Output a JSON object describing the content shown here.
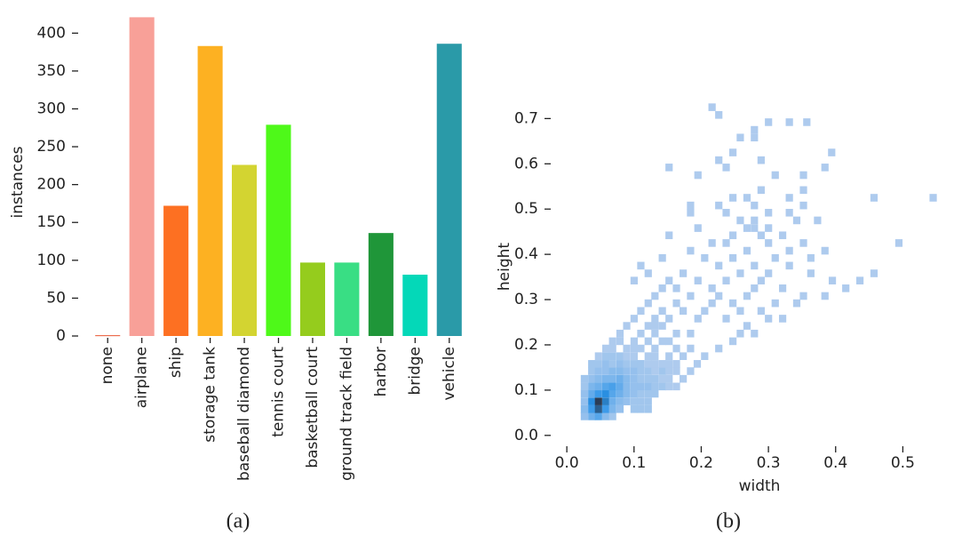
{
  "chart_data": [
    {
      "type": "bar",
      "panel_label": "(a)",
      "y_label": "instances",
      "categories": [
        "none",
        "airplane",
        "ship",
        "storage tank",
        "baseball diamond",
        "tennis court",
        "basketball court",
        "ground track field",
        "harbor",
        "bridge",
        "vehicle"
      ],
      "values": [
        1,
        421,
        172,
        383,
        226,
        279,
        97,
        97,
        136,
        81,
        386
      ],
      "colors": [
        "#e8542f",
        "#f8a098",
        "#fd7022",
        "#fdb122",
        "#d3d431",
        "#4ef919",
        "#95cc1d",
        "#39de84",
        "#1f9639",
        "#04d8b8",
        "#2a9aa8"
      ],
      "ylim": [
        0,
        425
      ],
      "yticks": [
        0,
        50,
        100,
        150,
        200,
        250,
        300,
        350,
        400
      ]
    },
    {
      "type": "histogram2d",
      "panel_label": "(b)",
      "x_label": "width",
      "y_label": "height",
      "colors": [
        "#aecbee",
        "#2a93e8",
        "#2b3d55"
      ],
      "xlim": [
        -0.02,
        0.555
      ],
      "ylim": [
        -0.02,
        0.74
      ],
      "xticks": [
        {
          "value": 0,
          "label": "0.0"
        },
        0.1,
        0.2,
        0.3,
        0.4,
        0.5
      ],
      "yticks": [
        {
          "value": 0,
          "label": "0.0"
        },
        0.1,
        0.2,
        0.3,
        0.4,
        0.5,
        0.6,
        0.7
      ],
      "cells": [
        [
          0.026,
          0.042,
          3
        ],
        [
          0.037,
          0.042,
          6
        ],
        [
          0.047,
          0.042,
          8
        ],
        [
          0.058,
          0.042,
          4
        ],
        [
          0.068,
          0.042,
          2
        ],
        [
          0.026,
          0.058,
          4
        ],
        [
          0.037,
          0.058,
          10
        ],
        [
          0.047,
          0.058,
          18
        ],
        [
          0.058,
          0.058,
          10
        ],
        [
          0.068,
          0.058,
          5
        ],
        [
          0.079,
          0.058,
          3
        ],
        [
          0.1,
          0.058,
          2
        ],
        [
          0.11,
          0.058,
          2
        ],
        [
          0.121,
          0.058,
          2
        ],
        [
          0.026,
          0.075,
          3
        ],
        [
          0.037,
          0.075,
          12
        ],
        [
          0.047,
          0.075,
          22
        ],
        [
          0.058,
          0.075,
          14
        ],
        [
          0.068,
          0.075,
          6
        ],
        [
          0.079,
          0.075,
          4
        ],
        [
          0.089,
          0.075,
          3
        ],
        [
          0.1,
          0.075,
          2
        ],
        [
          0.11,
          0.075,
          2
        ],
        [
          0.121,
          0.075,
          2
        ],
        [
          0.026,
          0.092,
          3
        ],
        [
          0.037,
          0.092,
          7
        ],
        [
          0.047,
          0.092,
          10
        ],
        [
          0.058,
          0.092,
          12
        ],
        [
          0.068,
          0.092,
          8
        ],
        [
          0.079,
          0.092,
          6
        ],
        [
          0.089,
          0.092,
          4
        ],
        [
          0.1,
          0.092,
          3
        ],
        [
          0.11,
          0.092,
          2
        ],
        [
          0.121,
          0.092,
          2
        ],
        [
          0.131,
          0.092,
          2
        ],
        [
          0.026,
          0.108,
          2
        ],
        [
          0.037,
          0.108,
          5
        ],
        [
          0.047,
          0.108,
          6
        ],
        [
          0.058,
          0.108,
          8
        ],
        [
          0.068,
          0.108,
          9
        ],
        [
          0.079,
          0.108,
          7
        ],
        [
          0.089,
          0.108,
          4
        ],
        [
          0.1,
          0.108,
          3
        ],
        [
          0.11,
          0.108,
          3
        ],
        [
          0.121,
          0.108,
          3
        ],
        [
          0.131,
          0.108,
          2
        ],
        [
          0.142,
          0.108,
          2
        ],
        [
          0.152,
          0.108,
          1
        ],
        [
          0.163,
          0.108,
          1
        ],
        [
          0.026,
          0.125,
          2
        ],
        [
          0.037,
          0.125,
          3
        ],
        [
          0.047,
          0.125,
          4
        ],
        [
          0.058,
          0.125,
          5
        ],
        [
          0.068,
          0.125,
          5
        ],
        [
          0.079,
          0.125,
          6
        ],
        [
          0.089,
          0.125,
          4
        ],
        [
          0.1,
          0.125,
          3
        ],
        [
          0.11,
          0.125,
          2
        ],
        [
          0.121,
          0.125,
          2
        ],
        [
          0.131,
          0.125,
          2
        ],
        [
          0.142,
          0.125,
          1
        ],
        [
          0.152,
          0.125,
          1
        ],
        [
          0.173,
          0.125,
          1
        ],
        [
          0.037,
          0.142,
          2
        ],
        [
          0.047,
          0.142,
          3
        ],
        [
          0.058,
          0.142,
          3
        ],
        [
          0.068,
          0.142,
          4
        ],
        [
          0.079,
          0.142,
          4
        ],
        [
          0.089,
          0.142,
          3
        ],
        [
          0.1,
          0.142,
          3
        ],
        [
          0.11,
          0.142,
          2
        ],
        [
          0.121,
          0.142,
          2
        ],
        [
          0.131,
          0.142,
          1
        ],
        [
          0.142,
          0.142,
          2
        ],
        [
          0.152,
          0.142,
          1
        ],
        [
          0.163,
          0.142,
          1
        ],
        [
          0.184,
          0.142,
          1
        ],
        [
          0.037,
          0.158,
          2
        ],
        [
          0.047,
          0.158,
          2
        ],
        [
          0.058,
          0.158,
          3
        ],
        [
          0.068,
          0.158,
          2
        ],
        [
          0.079,
          0.158,
          3
        ],
        [
          0.089,
          0.158,
          2
        ],
        [
          0.1,
          0.158,
          2
        ],
        [
          0.11,
          0.158,
          2
        ],
        [
          0.121,
          0.158,
          1
        ],
        [
          0.131,
          0.158,
          1
        ],
        [
          0.142,
          0.158,
          1
        ],
        [
          0.152,
          0.158,
          1
        ],
        [
          0.163,
          0.158,
          1
        ],
        [
          0.194,
          0.158,
          1
        ],
        [
          0.047,
          0.175,
          1
        ],
        [
          0.058,
          0.175,
          2
        ],
        [
          0.068,
          0.175,
          2
        ],
        [
          0.079,
          0.175,
          2
        ],
        [
          0.089,
          0.175,
          1
        ],
        [
          0.1,
          0.175,
          1
        ],
        [
          0.121,
          0.175,
          1
        ],
        [
          0.131,
          0.175,
          1
        ],
        [
          0.152,
          0.175,
          1
        ],
        [
          0.173,
          0.175,
          1
        ],
        [
          0.205,
          0.175,
          1
        ],
        [
          0.058,
          0.192,
          1
        ],
        [
          0.068,
          0.192,
          1
        ],
        [
          0.089,
          0.192,
          1
        ],
        [
          0.1,
          0.192,
          1
        ],
        [
          0.11,
          0.192,
          1
        ],
        [
          0.131,
          0.192,
          1
        ],
        [
          0.163,
          0.192,
          1
        ],
        [
          0.184,
          0.192,
          1
        ],
        [
          0.226,
          0.192,
          1
        ],
        [
          0.068,
          0.208,
          1
        ],
        [
          0.079,
          0.208,
          1
        ],
        [
          0.1,
          0.208,
          1
        ],
        [
          0.121,
          0.208,
          1
        ],
        [
          0.142,
          0.208,
          1
        ],
        [
          0.152,
          0.208,
          1
        ],
        [
          0.247,
          0.208,
          1
        ],
        [
          0.079,
          0.225,
          1
        ],
        [
          0.11,
          0.225,
          1
        ],
        [
          0.131,
          0.225,
          1
        ],
        [
          0.163,
          0.225,
          1
        ],
        [
          0.184,
          0.225,
          1
        ],
        [
          0.258,
          0.225,
          1
        ],
        [
          0.279,
          0.225,
          1
        ],
        [
          0.089,
          0.242,
          1
        ],
        [
          0.121,
          0.242,
          1
        ],
        [
          0.131,
          0.242,
          1
        ],
        [
          0.142,
          0.242,
          1
        ],
        [
          0.268,
          0.242,
          1
        ],
        [
          0.1,
          0.258,
          1
        ],
        [
          0.131,
          0.258,
          1
        ],
        [
          0.152,
          0.258,
          1
        ],
        [
          0.195,
          0.258,
          1
        ],
        [
          0.237,
          0.258,
          1
        ],
        [
          0.3,
          0.258,
          1
        ],
        [
          0.321,
          0.258,
          1
        ],
        [
          0.11,
          0.275,
          1
        ],
        [
          0.142,
          0.275,
          1
        ],
        [
          0.173,
          0.275,
          1
        ],
        [
          0.205,
          0.275,
          1
        ],
        [
          0.258,
          0.275,
          1
        ],
        [
          0.289,
          0.275,
          1
        ],
        [
          0.121,
          0.292,
          1
        ],
        [
          0.163,
          0.292,
          1
        ],
        [
          0.216,
          0.292,
          1
        ],
        [
          0.247,
          0.292,
          1
        ],
        [
          0.31,
          0.292,
          1
        ],
        [
          0.342,
          0.292,
          1
        ],
        [
          0.131,
          0.308,
          1
        ],
        [
          0.184,
          0.308,
          1
        ],
        [
          0.226,
          0.308,
          1
        ],
        [
          0.268,
          0.308,
          1
        ],
        [
          0.352,
          0.308,
          1
        ],
        [
          0.384,
          0.308,
          1
        ],
        [
          0.142,
          0.325,
          1
        ],
        [
          0.163,
          0.325,
          1
        ],
        [
          0.216,
          0.325,
          1
        ],
        [
          0.279,
          0.325,
          1
        ],
        [
          0.321,
          0.325,
          1
        ],
        [
          0.415,
          0.325,
          1
        ],
        [
          0.1,
          0.342,
          1
        ],
        [
          0.152,
          0.342,
          1
        ],
        [
          0.195,
          0.342,
          1
        ],
        [
          0.237,
          0.342,
          1
        ],
        [
          0.289,
          0.342,
          1
        ],
        [
          0.395,
          0.342,
          1
        ],
        [
          0.436,
          0.342,
          1
        ],
        [
          0.121,
          0.358,
          1
        ],
        [
          0.173,
          0.358,
          1
        ],
        [
          0.258,
          0.358,
          1
        ],
        [
          0.3,
          0.358,
          1
        ],
        [
          0.363,
          0.358,
          1
        ],
        [
          0.457,
          0.358,
          1
        ],
        [
          0.11,
          0.375,
          1
        ],
        [
          0.226,
          0.375,
          1
        ],
        [
          0.279,
          0.375,
          1
        ],
        [
          0.331,
          0.375,
          1
        ],
        [
          0.142,
          0.392,
          1
        ],
        [
          0.205,
          0.392,
          1
        ],
        [
          0.247,
          0.392,
          1
        ],
        [
          0.31,
          0.392,
          1
        ],
        [
          0.363,
          0.392,
          1
        ],
        [
          0.184,
          0.408,
          1
        ],
        [
          0.268,
          0.408,
          1
        ],
        [
          0.331,
          0.408,
          1
        ],
        [
          0.384,
          0.408,
          1
        ],
        [
          0.216,
          0.425,
          1
        ],
        [
          0.237,
          0.425,
          1
        ],
        [
          0.3,
          0.425,
          1
        ],
        [
          0.352,
          0.425,
          1
        ],
        [
          0.494,
          0.425,
          1
        ],
        [
          0.152,
          0.442,
          1
        ],
        [
          0.247,
          0.442,
          1
        ],
        [
          0.289,
          0.442,
          1
        ],
        [
          0.321,
          0.442,
          1
        ],
        [
          0.195,
          0.458,
          1
        ],
        [
          0.268,
          0.458,
          1
        ],
        [
          0.279,
          0.458,
          1
        ],
        [
          0.3,
          0.458,
          1
        ],
        [
          0.258,
          0.475,
          1
        ],
        [
          0.279,
          0.475,
          1
        ],
        [
          0.342,
          0.475,
          1
        ],
        [
          0.373,
          0.475,
          1
        ],
        [
          0.184,
          0.492,
          1
        ],
        [
          0.237,
          0.492,
          1
        ],
        [
          0.3,
          0.492,
          1
        ],
        [
          0.331,
          0.492,
          1
        ],
        [
          0.184,
          0.508,
          1
        ],
        [
          0.226,
          0.508,
          1
        ],
        [
          0.279,
          0.508,
          1
        ],
        [
          0.352,
          0.508,
          1
        ],
        [
          0.247,
          0.525,
          1
        ],
        [
          0.268,
          0.525,
          1
        ],
        [
          0.331,
          0.525,
          1
        ],
        [
          0.457,
          0.525,
          1
        ],
        [
          0.545,
          0.525,
          1
        ],
        [
          0.289,
          0.542,
          1
        ],
        [
          0.352,
          0.542,
          1
        ],
        [
          0.195,
          0.575,
          1
        ],
        [
          0.31,
          0.575,
          1
        ],
        [
          0.352,
          0.575,
          1
        ],
        [
          0.152,
          0.592,
          1
        ],
        [
          0.237,
          0.592,
          1
        ],
        [
          0.384,
          0.592,
          1
        ],
        [
          0.226,
          0.608,
          1
        ],
        [
          0.289,
          0.608,
          1
        ],
        [
          0.247,
          0.625,
          1
        ],
        [
          0.394,
          0.625,
          1
        ],
        [
          0.258,
          0.658,
          1
        ],
        [
          0.279,
          0.658,
          1
        ],
        [
          0.279,
          0.675,
          1
        ],
        [
          0.3,
          0.692,
          1
        ],
        [
          0.331,
          0.692,
          1
        ],
        [
          0.357,
          0.692,
          1
        ],
        [
          0.226,
          0.708,
          1
        ],
        [
          0.216,
          0.725,
          1
        ]
      ]
    }
  ]
}
